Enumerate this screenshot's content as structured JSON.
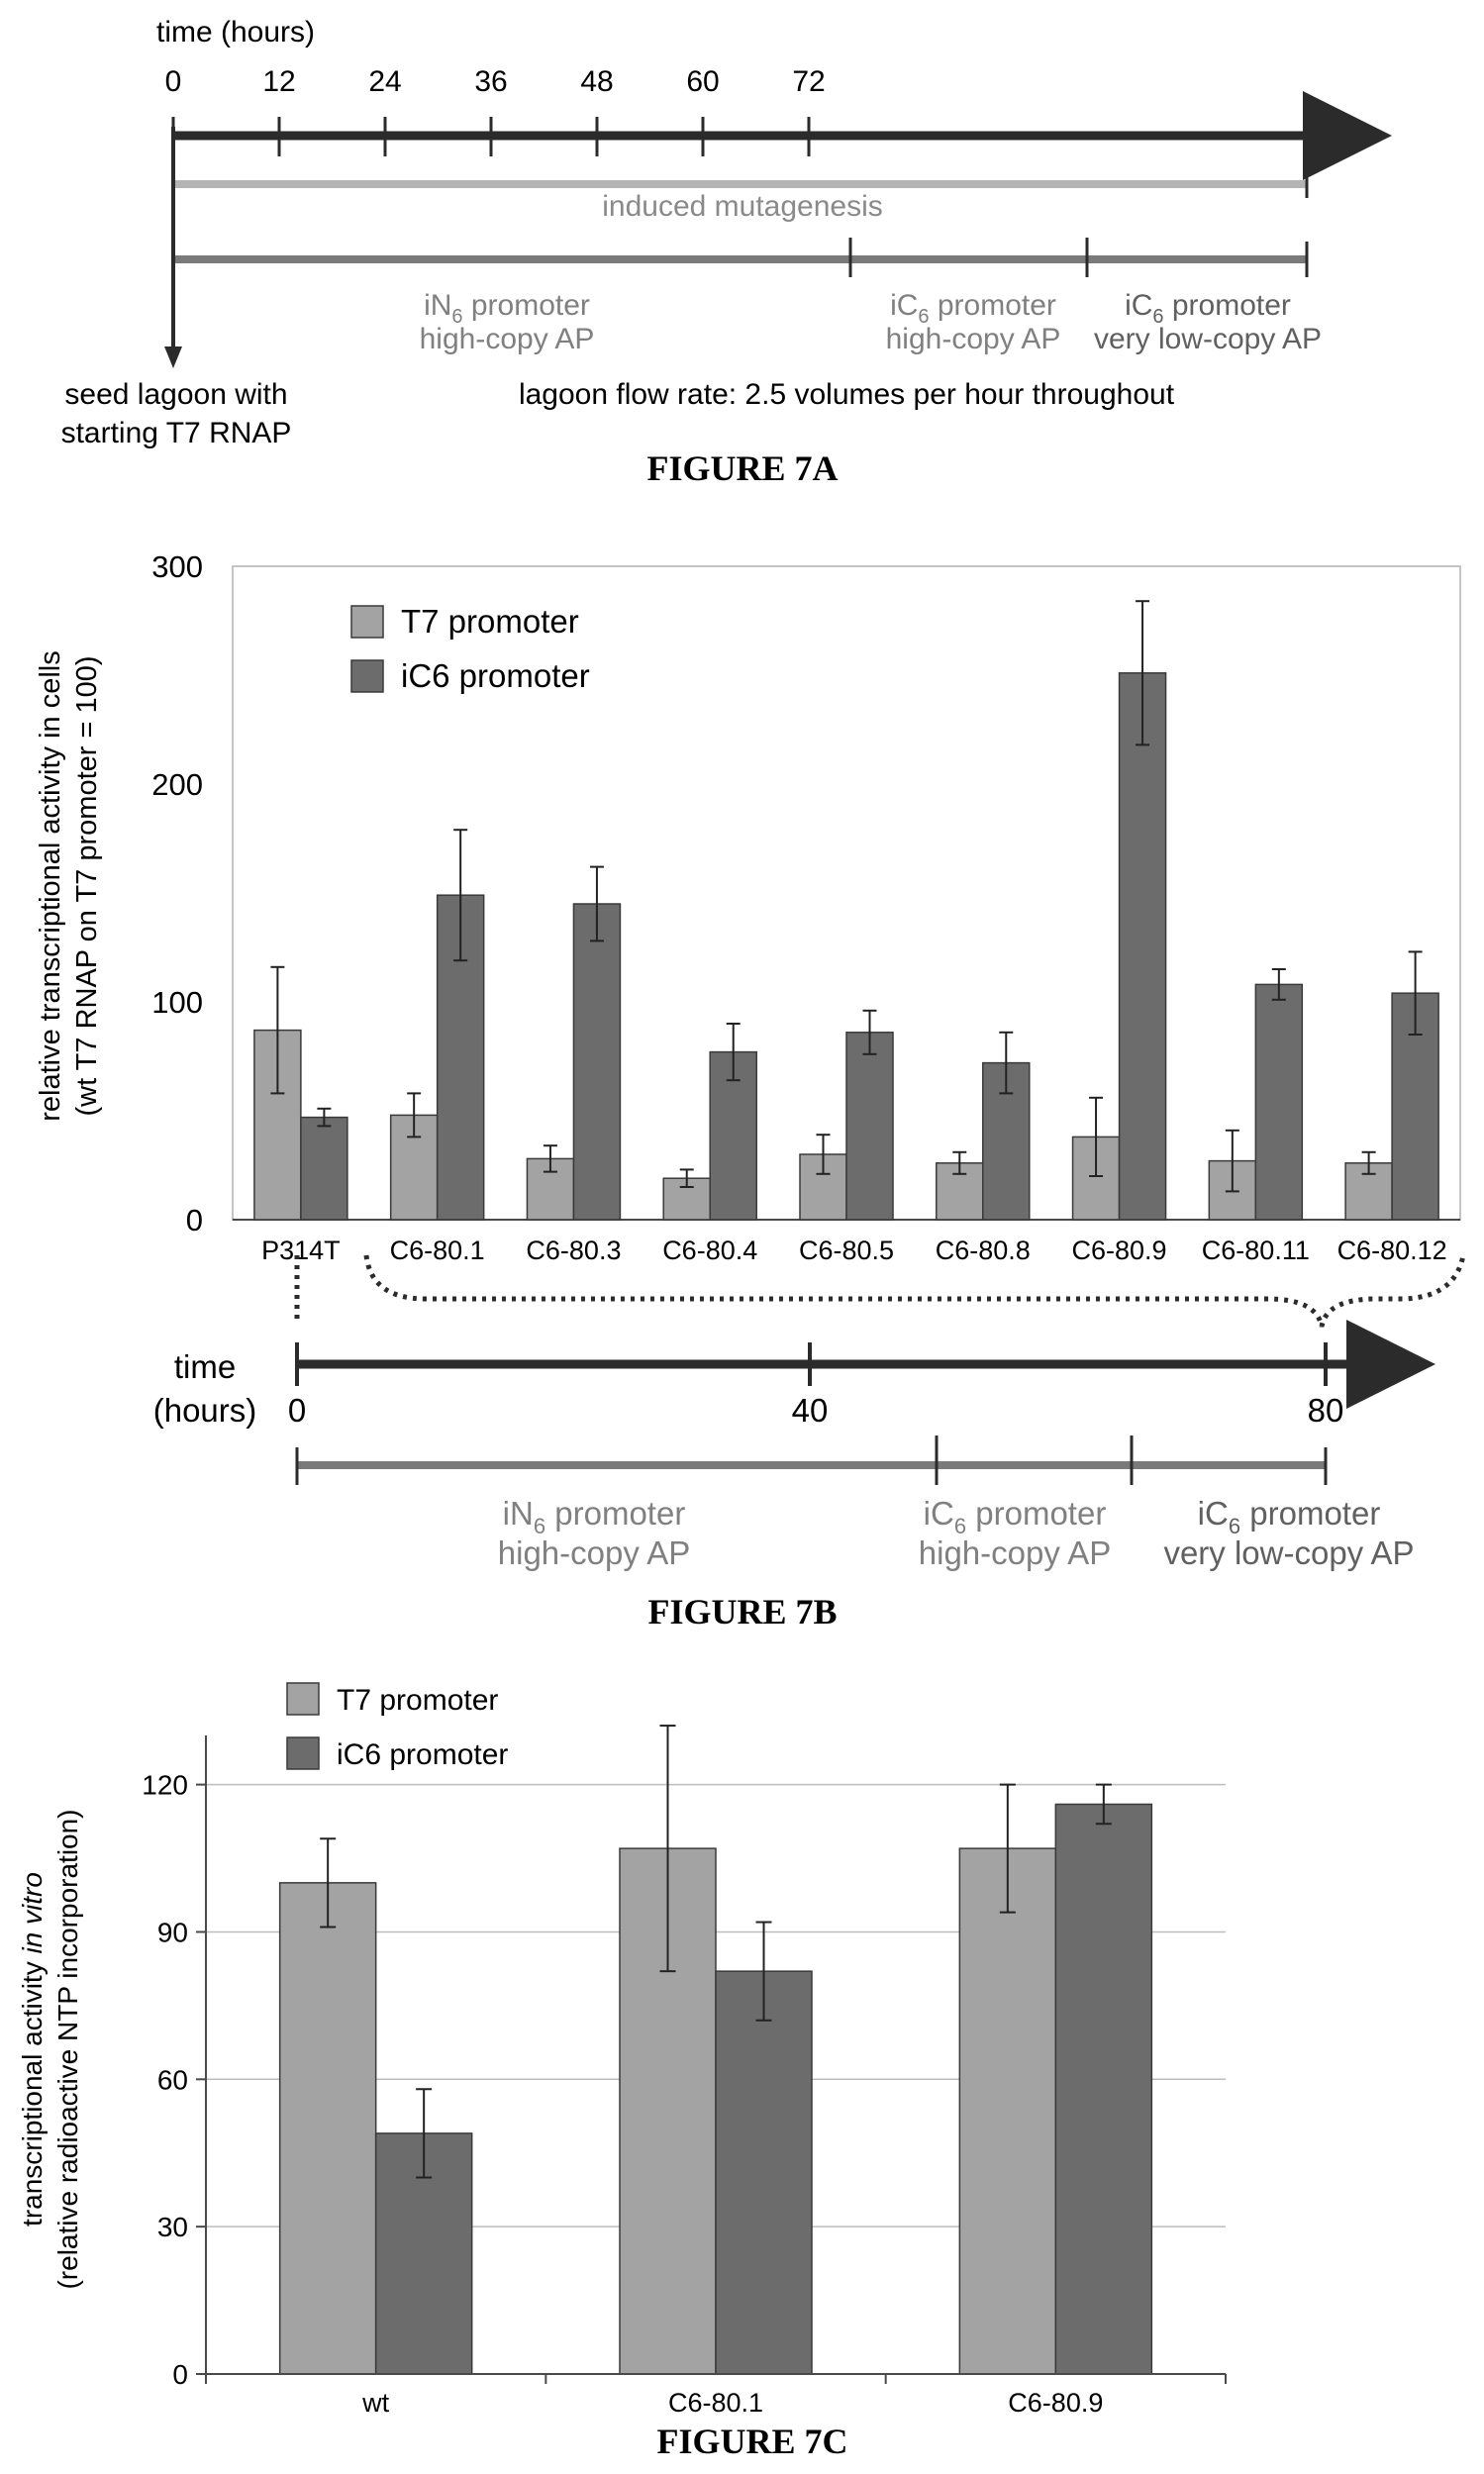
{
  "colors": {
    "timeline_arrow": "#2b2b2b",
    "mutagenesis_bar": "#b4b4b4",
    "phase_bar": "#7a7a7a",
    "t7_bar": "#a3a3a3",
    "ic6_bar": "#6c6c6c",
    "grid": "#bdbdbd",
    "gray_text": "#808080"
  },
  "fig7a": {
    "caption": "FIGURE 7A",
    "time_label": "time (hours)",
    "ticks": [
      "0",
      "12",
      "24",
      "36",
      "48",
      "60",
      "72"
    ],
    "mutagenesis_label": "induced mutagenesis",
    "phases": [
      {
        "line1": "iN6 promoter",
        "line2": "high-copy AP",
        "sub_char": "N",
        "sub_num": "6"
      },
      {
        "line1": "iC6 promoter",
        "line2": "high-copy AP",
        "sub_char": "C",
        "sub_num": "6"
      },
      {
        "line1": "iC6 promoter",
        "line2": "very low-copy AP",
        "sub_char": "C",
        "sub_num": "6"
      }
    ],
    "seed_line1": "seed lagoon with",
    "seed_line2": "starting T7 RNAP",
    "flow_rate": "lagoon flow rate: 2.5 volumes per hour throughout"
  },
  "fig7b": {
    "caption": "FIGURE 7B",
    "ylabel_line1": "relative transcriptional activity in cells",
    "ylabel_line2": "(wt T7 RNAP on T7 promoter = 100)",
    "time_label_line1": "time",
    "time_label_line2": "(hours)",
    "time_ticks": [
      "0",
      "40",
      "80"
    ],
    "phases": [
      {
        "line1": "iN6 promoter",
        "line2": "high-copy AP"
      },
      {
        "line1": "iC6 promoter",
        "line2": "high-copy AP"
      },
      {
        "line1": "iC6 promoter",
        "line2": "very low-copy AP"
      }
    ]
  },
  "fig7c": {
    "caption": "FIGURE 7C",
    "ylabel_line1_a": "transcriptional activity ",
    "ylabel_line1_b": "in vitro",
    "ylabel_line2": "(relative radioactive NTP incorporation)"
  },
  "chart_data": [
    {
      "type": "bar",
      "categories": [
        "P314T",
        "C6-80.1",
        "C6-80.3",
        "C6-80.4",
        "C6-80.5",
        "C6-80.8",
        "C6-80.9",
        "C6-80.11",
        "C6-80.12"
      ],
      "series": [
        {
          "name": "T7 promoter",
          "values": [
            87,
            48,
            28,
            19,
            30,
            26,
            38,
            27,
            26
          ],
          "errors": [
            29,
            10,
            6,
            4,
            9,
            5,
            18,
            14,
            5
          ]
        },
        {
          "name": "iC6 promoter",
          "values": [
            47,
            149,
            145,
            77,
            86,
            72,
            251,
            108,
            104
          ],
          "errors": [
            4,
            30,
            17,
            13,
            10,
            14,
            33,
            7,
            19
          ]
        }
      ],
      "ylim": [
        0,
        300
      ],
      "yticks": [
        "0",
        "100",
        "200",
        "300"
      ],
      "grid": false,
      "legend_position": "top-left"
    },
    {
      "type": "bar",
      "categories": [
        "wt",
        "C6-80.1",
        "C6-80.9"
      ],
      "series": [
        {
          "name": "T7 promoter",
          "values": [
            100,
            107,
            107
          ],
          "errors": [
            9,
            25,
            13
          ]
        },
        {
          "name": "iC6 promoter",
          "values": [
            49,
            82,
            116
          ],
          "errors": [
            9,
            10,
            4
          ]
        }
      ],
      "ylim": [
        0,
        130
      ],
      "yticks": [
        "0",
        "30",
        "60",
        "90",
        "120"
      ],
      "grid": true,
      "legend_position": "top-left"
    }
  ]
}
